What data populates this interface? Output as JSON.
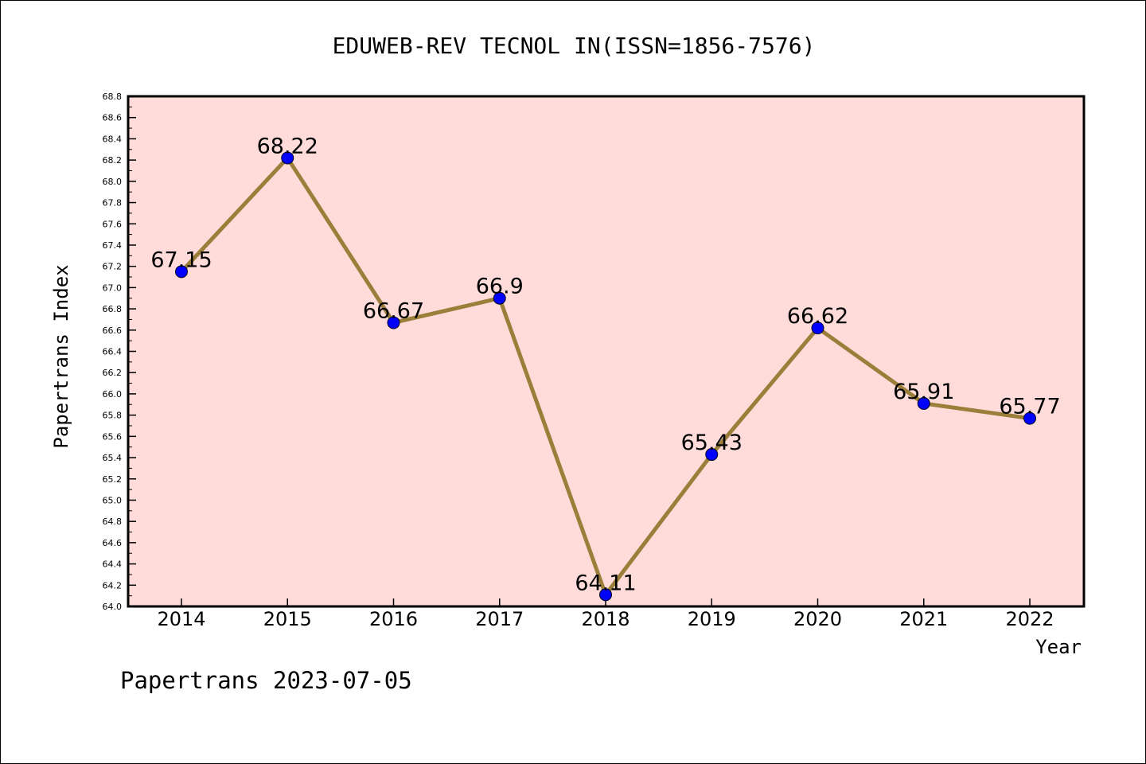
{
  "chart_data": {
    "type": "line",
    "title": "EDUWEB-REV TECNOL IN(ISSN=1856-7576)",
    "xlabel": "Year",
    "ylabel": "Papertrans Index",
    "footer": "Papertrans 2023-07-05",
    "categories": [
      "2014",
      "2015",
      "2016",
      "2017",
      "2018",
      "2019",
      "2020",
      "2021",
      "2022"
    ],
    "values": [
      67.15,
      68.22,
      66.67,
      66.9,
      64.11,
      65.43,
      66.62,
      65.91,
      65.77
    ],
    "data_labels": [
      "67.15",
      "68.22",
      "66.67",
      "66.9",
      "64.11",
      "65.43",
      "66.62",
      "65.91",
      "65.77"
    ],
    "ylim": [
      64.0,
      68.8
    ],
    "yticks": [
      "64.0",
      "64.2",
      "64.4",
      "64.6",
      "64.8",
      "65.0",
      "65.2",
      "65.4",
      "65.6",
      "65.8",
      "66.0",
      "66.2",
      "66.4",
      "66.6",
      "66.8",
      "67.0",
      "67.2",
      "67.4",
      "67.6",
      "67.8",
      "68.0",
      "68.2",
      "68.4",
      "68.6",
      "68.8"
    ],
    "grid": false,
    "legend": "none",
    "colors": {
      "plot_background": "#FFDCDA",
      "line": "#9A7E3A",
      "marker": "#0000FF",
      "axis": "#000000"
    }
  }
}
